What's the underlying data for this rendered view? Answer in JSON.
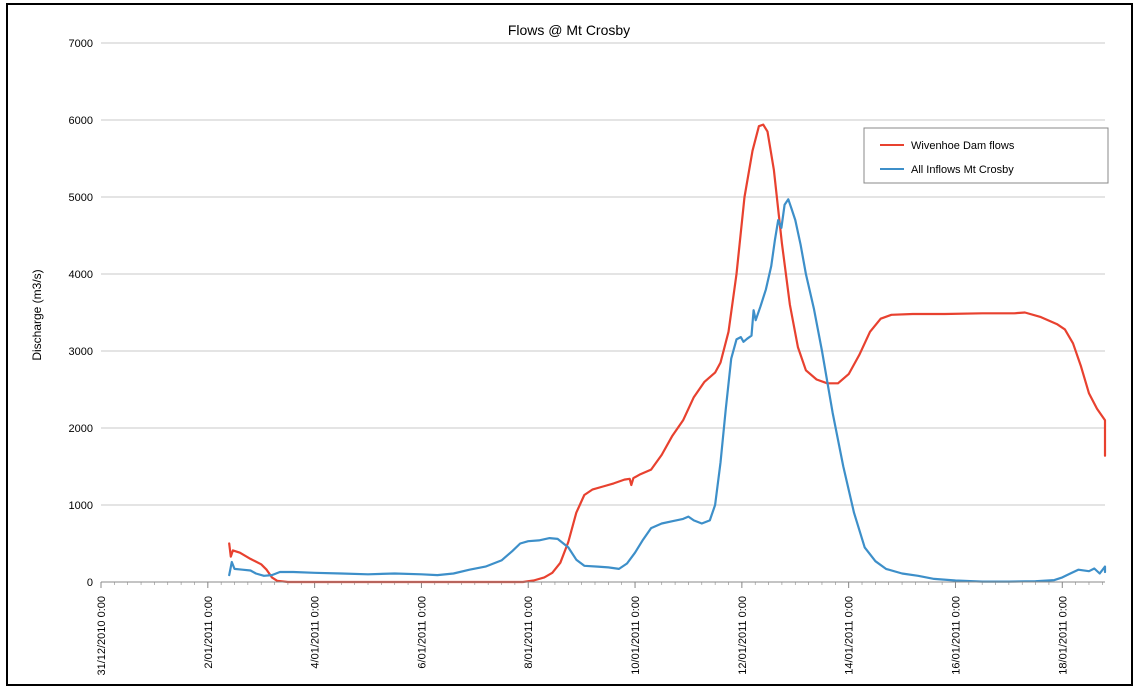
{
  "chart_data": {
    "type": "line",
    "title": "Flows @ Mt Crosby",
    "xlabel": "",
    "ylabel": "Discharge (m3/s)",
    "ylim": [
      0,
      7000
    ],
    "xlim_days": [
      0,
      18.8
    ],
    "y_ticks": [
      0,
      1000,
      2000,
      3000,
      4000,
      5000,
      6000,
      7000
    ],
    "x_ticks": [
      {
        "day": 0,
        "label": "31/12/2010 0:00"
      },
      {
        "day": 2,
        "label": "2/01/2011 0:00"
      },
      {
        "day": 4,
        "label": "4/01/2011 0:00"
      },
      {
        "day": 6,
        "label": "6/01/2011 0:00"
      },
      {
        "day": 8,
        "label": "8/01/2011 0:00"
      },
      {
        "day": 10,
        "label": "10/01/2011 0:00"
      },
      {
        "day": 12,
        "label": "12/01/2011 0:00"
      },
      {
        "day": 14,
        "label": "14/01/2011 0:00"
      },
      {
        "day": 16,
        "label": "16/01/2011 0:00"
      },
      {
        "day": 18,
        "label": "18/01/2011 0:00"
      }
    ],
    "grid": "horizontal",
    "legend_position": "top-right",
    "series": [
      {
        "name": "Wivenhoe Dam flows",
        "color": "#e8412f",
        "points": [
          [
            2.4,
            500
          ],
          [
            2.43,
            330
          ],
          [
            2.47,
            410
          ],
          [
            2.6,
            380
          ],
          [
            2.8,
            300
          ],
          [
            3.0,
            230
          ],
          [
            3.1,
            160
          ],
          [
            3.2,
            60
          ],
          [
            3.3,
            15
          ],
          [
            3.5,
            0
          ],
          [
            4.0,
            0
          ],
          [
            6.0,
            0
          ],
          [
            7.9,
            0
          ],
          [
            8.1,
            20
          ],
          [
            8.3,
            60
          ],
          [
            8.45,
            120
          ],
          [
            8.6,
            250
          ],
          [
            8.75,
            520
          ],
          [
            8.9,
            900
          ],
          [
            9.05,
            1130
          ],
          [
            9.2,
            1200
          ],
          [
            9.4,
            1240
          ],
          [
            9.6,
            1280
          ],
          [
            9.8,
            1330
          ],
          [
            9.9,
            1340
          ],
          [
            9.93,
            1260
          ],
          [
            9.97,
            1350
          ],
          [
            10.1,
            1400
          ],
          [
            10.3,
            1460
          ],
          [
            10.5,
            1650
          ],
          [
            10.7,
            1900
          ],
          [
            10.9,
            2100
          ],
          [
            11.1,
            2400
          ],
          [
            11.3,
            2600
          ],
          [
            11.5,
            2720
          ],
          [
            11.6,
            2850
          ],
          [
            11.75,
            3250
          ],
          [
            11.9,
            4000
          ],
          [
            12.05,
            5000
          ],
          [
            12.2,
            5600
          ],
          [
            12.32,
            5920
          ],
          [
            12.4,
            5940
          ],
          [
            12.48,
            5850
          ],
          [
            12.6,
            5350
          ],
          [
            12.75,
            4400
          ],
          [
            12.9,
            3600
          ],
          [
            13.05,
            3050
          ],
          [
            13.2,
            2750
          ],
          [
            13.4,
            2630
          ],
          [
            13.6,
            2580
          ],
          [
            13.8,
            2580
          ],
          [
            14.0,
            2700
          ],
          [
            14.2,
            2950
          ],
          [
            14.4,
            3250
          ],
          [
            14.6,
            3420
          ],
          [
            14.8,
            3470
          ],
          [
            15.2,
            3480
          ],
          [
            15.8,
            3480
          ],
          [
            16.5,
            3490
          ],
          [
            17.1,
            3490
          ],
          [
            17.3,
            3500
          ],
          [
            17.6,
            3440
          ],
          [
            17.9,
            3350
          ],
          [
            18.05,
            3280
          ],
          [
            18.2,
            3100
          ],
          [
            18.35,
            2800
          ],
          [
            18.5,
            2450
          ],
          [
            18.65,
            2250
          ],
          [
            18.8,
            2100
          ],
          [
            18.95,
            1870
          ],
          [
            19.1,
            1640
          ]
        ]
      },
      {
        "name": "All Inflows Mt Crosby",
        "color": "#3d8fc9",
        "points": [
          [
            2.4,
            90
          ],
          [
            2.45,
            260
          ],
          [
            2.5,
            170
          ],
          [
            2.65,
            160
          ],
          [
            2.8,
            150
          ],
          [
            2.9,
            110
          ],
          [
            3.05,
            80
          ],
          [
            3.2,
            90
          ],
          [
            3.35,
            130
          ],
          [
            3.6,
            130
          ],
          [
            4.0,
            120
          ],
          [
            4.5,
            110
          ],
          [
            5.0,
            100
          ],
          [
            5.5,
            110
          ],
          [
            6.0,
            100
          ],
          [
            6.3,
            90
          ],
          [
            6.6,
            110
          ],
          [
            6.9,
            160
          ],
          [
            7.2,
            200
          ],
          [
            7.5,
            280
          ],
          [
            7.7,
            400
          ],
          [
            7.85,
            500
          ],
          [
            8.0,
            530
          ],
          [
            8.2,
            540
          ],
          [
            8.4,
            570
          ],
          [
            8.55,
            560
          ],
          [
            8.75,
            450
          ],
          [
            8.9,
            290
          ],
          [
            9.05,
            210
          ],
          [
            9.3,
            200
          ],
          [
            9.5,
            190
          ],
          [
            9.7,
            170
          ],
          [
            9.85,
            240
          ],
          [
            10.0,
            380
          ],
          [
            10.15,
            550
          ],
          [
            10.3,
            700
          ],
          [
            10.5,
            760
          ],
          [
            10.7,
            790
          ],
          [
            10.9,
            820
          ],
          [
            11.0,
            850
          ],
          [
            11.1,
            800
          ],
          [
            11.25,
            760
          ],
          [
            11.4,
            800
          ],
          [
            11.5,
            1000
          ],
          [
            11.6,
            1550
          ],
          [
            11.7,
            2250
          ],
          [
            11.8,
            2900
          ],
          [
            11.9,
            3150
          ],
          [
            11.98,
            3180
          ],
          [
            12.03,
            3120
          ],
          [
            12.1,
            3160
          ],
          [
            12.18,
            3200
          ],
          [
            12.22,
            3530
          ],
          [
            12.26,
            3400
          ],
          [
            12.35,
            3580
          ],
          [
            12.45,
            3800
          ],
          [
            12.55,
            4100
          ],
          [
            12.62,
            4450
          ],
          [
            12.68,
            4700
          ],
          [
            12.74,
            4600
          ],
          [
            12.8,
            4900
          ],
          [
            12.87,
            4970
          ],
          [
            12.93,
            4850
          ],
          [
            13.0,
            4700
          ],
          [
            13.1,
            4380
          ],
          [
            13.2,
            4000
          ],
          [
            13.35,
            3550
          ],
          [
            13.5,
            3000
          ],
          [
            13.7,
            2200
          ],
          [
            13.9,
            1500
          ],
          [
            14.1,
            900
          ],
          [
            14.3,
            450
          ],
          [
            14.5,
            270
          ],
          [
            14.7,
            170
          ],
          [
            15.0,
            110
          ],
          [
            15.3,
            80
          ],
          [
            15.6,
            40
          ],
          [
            16.0,
            20
          ],
          [
            16.5,
            5
          ],
          [
            17.0,
            5
          ],
          [
            17.5,
            10
          ],
          [
            17.85,
            25
          ],
          [
            18.0,
            60
          ],
          [
            18.15,
            110
          ],
          [
            18.3,
            160
          ],
          [
            18.5,
            140
          ],
          [
            18.6,
            175
          ],
          [
            18.7,
            110
          ],
          [
            18.8,
            200
          ],
          [
            18.9,
            130
          ],
          [
            19.1,
            150
          ]
        ]
      }
    ]
  }
}
